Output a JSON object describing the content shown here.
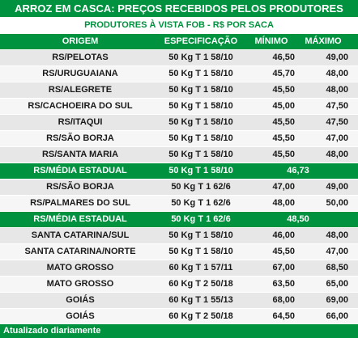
{
  "title": "ARROZ EM CASCA: PREÇOS RECEBIDOS PELOS PRODUTORES",
  "subtitle": "PRODUTORES À VISTA FOB - R$ POR SACA",
  "colors": {
    "green": "#00923f",
    "row_light": "#f6f6f6",
    "row_dark": "#e7e7e7"
  },
  "headers": {
    "origem": "ORIGEM",
    "especificacao": "ESPECIFICAÇÃO",
    "minimo": "MÍNIMO",
    "maximo": "MÁXIMO"
  },
  "rows1": [
    {
      "origem": "RS/PELOTAS",
      "espec": "50 Kg T 1 58/10",
      "min": "46,50",
      "max": "49,00"
    },
    {
      "origem": "RS/URUGUAIANA",
      "espec": "50 Kg T 1 58/10",
      "min": "45,70",
      "max": "48,00"
    },
    {
      "origem": "RS/ALEGRETE",
      "espec": "50 Kg T 1 58/10",
      "min": "45,50",
      "max": "48,00"
    },
    {
      "origem": "RS/CACHOEIRA DO SUL",
      "espec": "50 Kg T 1 58/10",
      "min": "45,00",
      "max": "47,50"
    },
    {
      "origem": "RS/ITAQUI",
      "espec": "50 Kg T 1 58/10",
      "min": "45,50",
      "max": "47,50"
    },
    {
      "origem": "RS/SÃO BORJA",
      "espec": "50 Kg T 1 58/10",
      "min": "45,50",
      "max": "47,00"
    },
    {
      "origem": "RS/SANTA MARIA",
      "espec": "50 Kg T 1 58/10",
      "min": "45,50",
      "max": "48,00"
    }
  ],
  "media1": {
    "origem": "RS/MÉDIA ESTADUAL",
    "espec": "50 Kg T 1 58/10",
    "valor": "46,73"
  },
  "rows2": [
    {
      "origem": "RS/SÃO BORJA",
      "espec": "50 Kg T 1 62/6",
      "min": "47,00",
      "max": "49,00"
    },
    {
      "origem": "RS/PALMARES DO SUL",
      "espec": "50 Kg T 1 62/6",
      "min": "48,00",
      "max": "50,00"
    }
  ],
  "media2": {
    "origem": "RS/MÉDIA ESTADUAL",
    "espec": "50 Kg T 1 62/6",
    "valor": "48,50"
  },
  "rows3": [
    {
      "origem": "SANTA CATARINA/SUL",
      "espec": "50 Kg T 1 58/10",
      "min": "46,00",
      "max": "48,00"
    },
    {
      "origem": "SANTA CATARINA/NORTE",
      "espec": "50 Kg T 1 58/10",
      "min": "45,50",
      "max": "47,00"
    },
    {
      "origem": "MATO GROSSO",
      "espec": "60 Kg T 1 57/11",
      "min": "67,00",
      "max": "68,50"
    },
    {
      "origem": "MATO GROSSO",
      "espec": "60 Kg T 2 50/18",
      "min": "63,50",
      "max": "65,00"
    },
    {
      "origem": "GOIÁS",
      "espec": "60 Kg T 1 55/13",
      "min": "68,00",
      "max": "69,00"
    },
    {
      "origem": "GOIÁS",
      "espec": "60 Kg T 2 50/18",
      "min": "64,50",
      "max": "66,00"
    }
  ],
  "footer": "Atualizado diariamente"
}
